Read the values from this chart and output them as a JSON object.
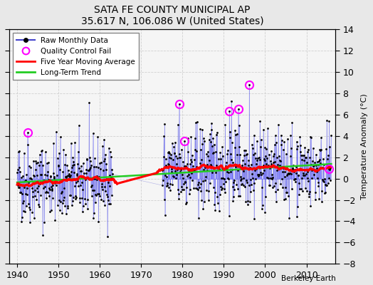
{
  "title": "SATA FE COUNTY MUNICIPAL AP",
  "subtitle": "35.617 N, 106.086 W (United States)",
  "ylabel": "Temperature Anomaly (°C)",
  "credit": "Berkeley Earth",
  "xlim": [
    1938,
    2017
  ],
  "ylim": [
    -8,
    14
  ],
  "yticks": [
    -8,
    -6,
    -4,
    -2,
    0,
    2,
    4,
    6,
    8,
    10,
    12,
    14
  ],
  "xticks": [
    1940,
    1950,
    1960,
    1970,
    1980,
    1990,
    2000,
    2010
  ],
  "fig_bg": "#e8e8e8",
  "plot_bg": "#f5f5f5",
  "grid_color": "#cccccc",
  "gap_start": 1963.0,
  "gap_end": 1975.0,
  "data_start": 1940.0,
  "data_end": 2016.0,
  "seed": 42,
  "qc_fails": [
    [
      1942.5,
      4.3
    ],
    [
      1979.2,
      7.0
    ],
    [
      1980.5,
      3.5
    ],
    [
      1991.3,
      6.3
    ],
    [
      1993.5,
      6.5
    ],
    [
      1996.2,
      8.8
    ],
    [
      2015.4,
      0.9
    ]
  ],
  "trend_slope": 0.012,
  "trend_intercept_year": 1977,
  "trend_intercept_val": 0.25
}
